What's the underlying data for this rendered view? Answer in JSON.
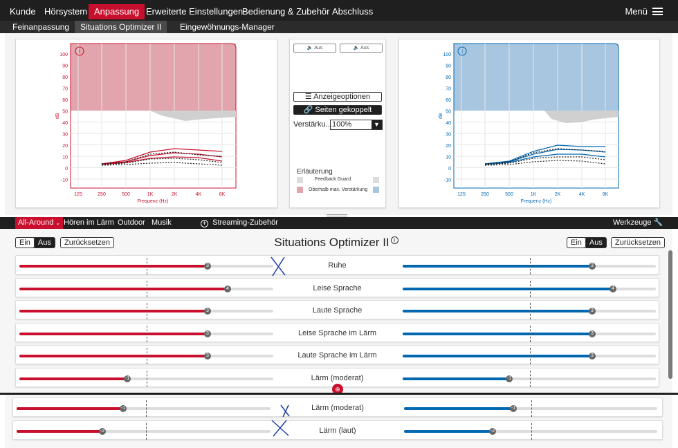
{
  "menubar": {
    "tabs": [
      "Kunde",
      "Hörsystem",
      "Anpassung",
      "Erweiterte Einstellungen",
      "Bedienung & Zubehör",
      "Abschluss"
    ],
    "active": "Anpassung",
    "menu_label": "Menü"
  },
  "subtabs": {
    "items": [
      "Feinanpassung",
      "Situations Optimizer II",
      "Eingewöhnungs-Manager"
    ],
    "active": "Situations Optimizer II"
  },
  "graph": {
    "y_ticks": [
      "100",
      "90",
      "80",
      "70",
      "60",
      "50",
      "40",
      "30",
      "20",
      "10",
      "0",
      "-10"
    ],
    "y_unit": "dB",
    "x_ticks": [
      "125",
      "250",
      "500",
      "1K",
      "2K",
      "4K",
      "8K"
    ],
    "x_label": "Frequenz (Hz)",
    "info_icon": "info-icon",
    "colors": {
      "left": "#c8102e",
      "right": "#0067b1",
      "left_fill": "#e2a5ad",
      "right_fill": "#a9c6e0"
    }
  },
  "middle": {
    "mute_left": "Aus",
    "mute_right": "Aus",
    "display_options": "Anzeigeoptionen",
    "sides_coupled": "Seiten gekoppelt",
    "gain_label": "Verstärku...",
    "gain_value": "100%",
    "legend_title": "Erläuterung",
    "legend_feedback": "Feedback Guard",
    "legend_max": "Oberhalb max. Verstärkung"
  },
  "programs": {
    "tabs": [
      "All-Around",
      "Hören im Lärm",
      "Outdoor",
      "Musik"
    ],
    "active": "All-Around",
    "streaming": "Streaming-Zubehör",
    "tools": "Werkzeuge"
  },
  "optimizer": {
    "title": "Situations Optimizer II",
    "on_label": "Ein",
    "off_label": "Aus",
    "reset_label": "Zurücksetzen",
    "rows": [
      {
        "label": "Ruhe",
        "left": 3,
        "right": 3
      },
      {
        "label": "Leise Sprache",
        "left": 4,
        "right": 4
      },
      {
        "label": "Laute Sprache",
        "left": 3,
        "right": 3
      },
      {
        "label": "Leise Sprache im Lärm",
        "left": 3,
        "right": 3
      },
      {
        "label": "Laute Sprache im Lärm",
        "left": 3,
        "right": 3
      },
      {
        "label": "Lärm (moderat)",
        "left": -1,
        "right": -1
      }
    ],
    "bottom_rows": [
      {
        "label": "Lärm (moderat)",
        "left": -1,
        "right": -1
      },
      {
        "label": "Lärm (laut)",
        "left": -2,
        "right": -2
      }
    ]
  }
}
